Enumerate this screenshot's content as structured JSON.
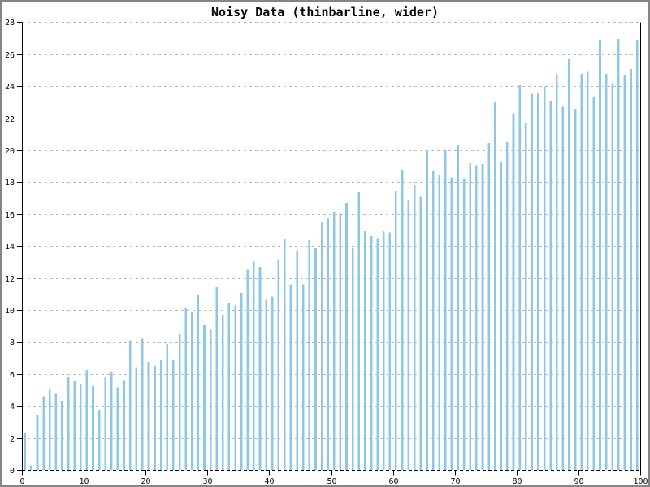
{
  "page": {
    "background": "#ffffff",
    "border_color": "#858585"
  },
  "chart_data": {
    "type": "bar",
    "title": "Noisy Data (thinbarline, wider)",
    "xlabel": "",
    "ylabel": "",
    "xlim": [
      0,
      100
    ],
    "ylim": [
      0,
      28
    ],
    "x_ticks": [
      0,
      10,
      20,
      30,
      40,
      50,
      60,
      70,
      80,
      90,
      100
    ],
    "y_ticks": [
      0,
      2,
      4,
      6,
      8,
      10,
      12,
      14,
      16,
      18,
      20,
      22,
      24,
      26,
      28
    ],
    "grid": "horizontal-dashed",
    "legend": null,
    "bar_color": "#8cc8e6",
    "grid_color": "#b8b8b8",
    "axis_color": "#000000",
    "x": [
      0.5,
      1.5,
      2.5,
      3.5,
      4.5,
      5.5,
      6.5,
      7.5,
      8.5,
      9.5,
      10.5,
      11.5,
      12.5,
      13.5,
      14.5,
      15.5,
      16.5,
      17.5,
      18.5,
      19.5,
      20.5,
      21.5,
      22.5,
      23.5,
      24.5,
      25.5,
      26.5,
      27.5,
      28.5,
      29.5,
      30.5,
      31.5,
      32.5,
      33.5,
      34.5,
      35.5,
      36.5,
      37.5,
      38.5,
      39.5,
      40.5,
      41.5,
      42.5,
      43.5,
      44.5,
      45.5,
      46.5,
      47.5,
      48.5,
      49.5,
      50.5,
      51.5,
      52.5,
      53.5,
      54.5,
      55.5,
      56.5,
      57.5,
      58.5,
      59.5,
      60.5,
      61.5,
      62.5,
      63.5,
      64.5,
      65.5,
      66.5,
      67.5,
      68.5,
      69.5,
      70.5,
      71.5,
      72.5,
      73.5,
      74.5,
      75.5,
      76.5,
      77.5,
      78.5,
      79.5,
      80.5,
      81.5,
      82.5,
      83.5,
      84.5,
      85.5,
      86.5,
      87.5,
      88.5,
      89.5,
      90.5,
      91.5,
      92.5,
      93.5,
      94.5,
      95.5,
      96.5,
      97.5,
      98.5,
      99.5
    ],
    "values": [
      2.3,
      0.27,
      3.44,
      4.59,
      5.05,
      4.8,
      4.32,
      5.81,
      5.56,
      5.39,
      6.24,
      5.22,
      3.75,
      5.81,
      6.15,
      5.14,
      5.6,
      8.1,
      6.43,
      8.2,
      6.75,
      6.5,
      6.85,
      7.87,
      6.85,
      8.5,
      10.12,
      9.88,
      10.93,
      9.03,
      8.8,
      11.47,
      9.7,
      10.46,
      10.29,
      11.07,
      12.51,
      13.05,
      12.7,
      10.68,
      10.85,
      13.17,
      14.44,
      11.61,
      13.73,
      11.61,
      14.36,
      13.9,
      15.51,
      15.76,
      16.13,
      16.06,
      16.71,
      13.85,
      17.42,
      14.92,
      14.63,
      14.49,
      14.95,
      14.86,
      17.46,
      18.76,
      16.86,
      17.83,
      17.07,
      19.95,
      18.68,
      18.46,
      20.0,
      18.3,
      20.3,
      18.25,
      19.2,
      19.05,
      19.15,
      20.45,
      23.0,
      19.3,
      20.5,
      22.3,
      24.07,
      21.7,
      23.52,
      23.61,
      23.98,
      23.1,
      24.74,
      22.71,
      25.68,
      22.6,
      24.77,
      24.91,
      23.35,
      26.9,
      24.77,
      24.2,
      26.95,
      24.69,
      25.07,
      26.9
    ]
  }
}
